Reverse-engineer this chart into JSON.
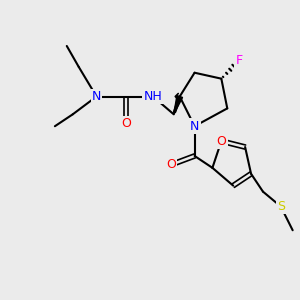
{
  "background_color": "#ebebeb",
  "atom_colors": {
    "N": "#0000ff",
    "O": "#ff0000",
    "F": "#ff00ff",
    "S": "#cccc00",
    "C": "#000000",
    "H": "#000000"
  },
  "bond_color": "#000000",
  "figsize": [
    3.0,
    3.0
  ],
  "dpi": 100
}
